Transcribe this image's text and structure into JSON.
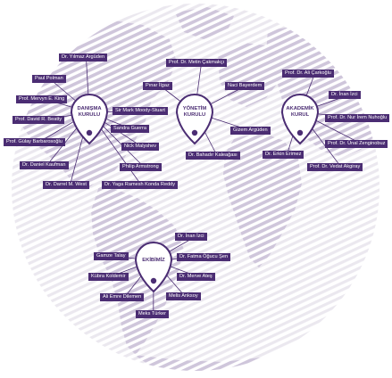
{
  "colors": {
    "accent": "#4b2d73",
    "map_stripe": "#cfc6db",
    "globe_stripe": "#ebe8ef"
  },
  "groups": [
    {
      "title": "DANIŞMA\nKURULU",
      "members": [
        "Dr. Yılmaz Argüden",
        "Paul Polman",
        "Prof. Mervyn E. King",
        "Prof. David R. Beatty",
        "Prof. Gülay Barbarosoğlu",
        "Dr. Daniel Kaufman",
        "Dr. Darrel M. West",
        "Sir Mark Moody-Stuart",
        "Sandra Guerra",
        "Nick Malyshev",
        "Philip Armstrong",
        "Dr. Yaga Ramesh Konda Reddy"
      ]
    },
    {
      "title": "YÖNETİM\nKURULU",
      "members": [
        "Prof. Dr. Metin Çakmakçı",
        "Pınar İlgaz",
        "Naci Bayerdem",
        "Gizem Argüden",
        "Dr. Bahadır Kaleağası"
      ]
    },
    {
      "title": "AKADEMİK\nKURUL",
      "members": [
        "Prof. Dr. Ali Çarkoğlu",
        "Dr. İnan İzci",
        "Prof. Dr. Nur İrem Nuhoğlu",
        "Prof. Dr. Ünal Zenginobuz",
        "Prof. Dr. Vedat Akgiray",
        "Dr. Erkin Erimez"
      ]
    },
    {
      "title": "EKİBİMİZ",
      "members": [
        "Dr. İnan İzci",
        "Gamze Talay",
        "Dr. Fatma Öğucu Şen",
        "Kübra Koldemir",
        "Dr. Merve Ateş",
        "Ali Emre Dilemen",
        "Melis Anksoy",
        "Meks Türker"
      ]
    }
  ]
}
